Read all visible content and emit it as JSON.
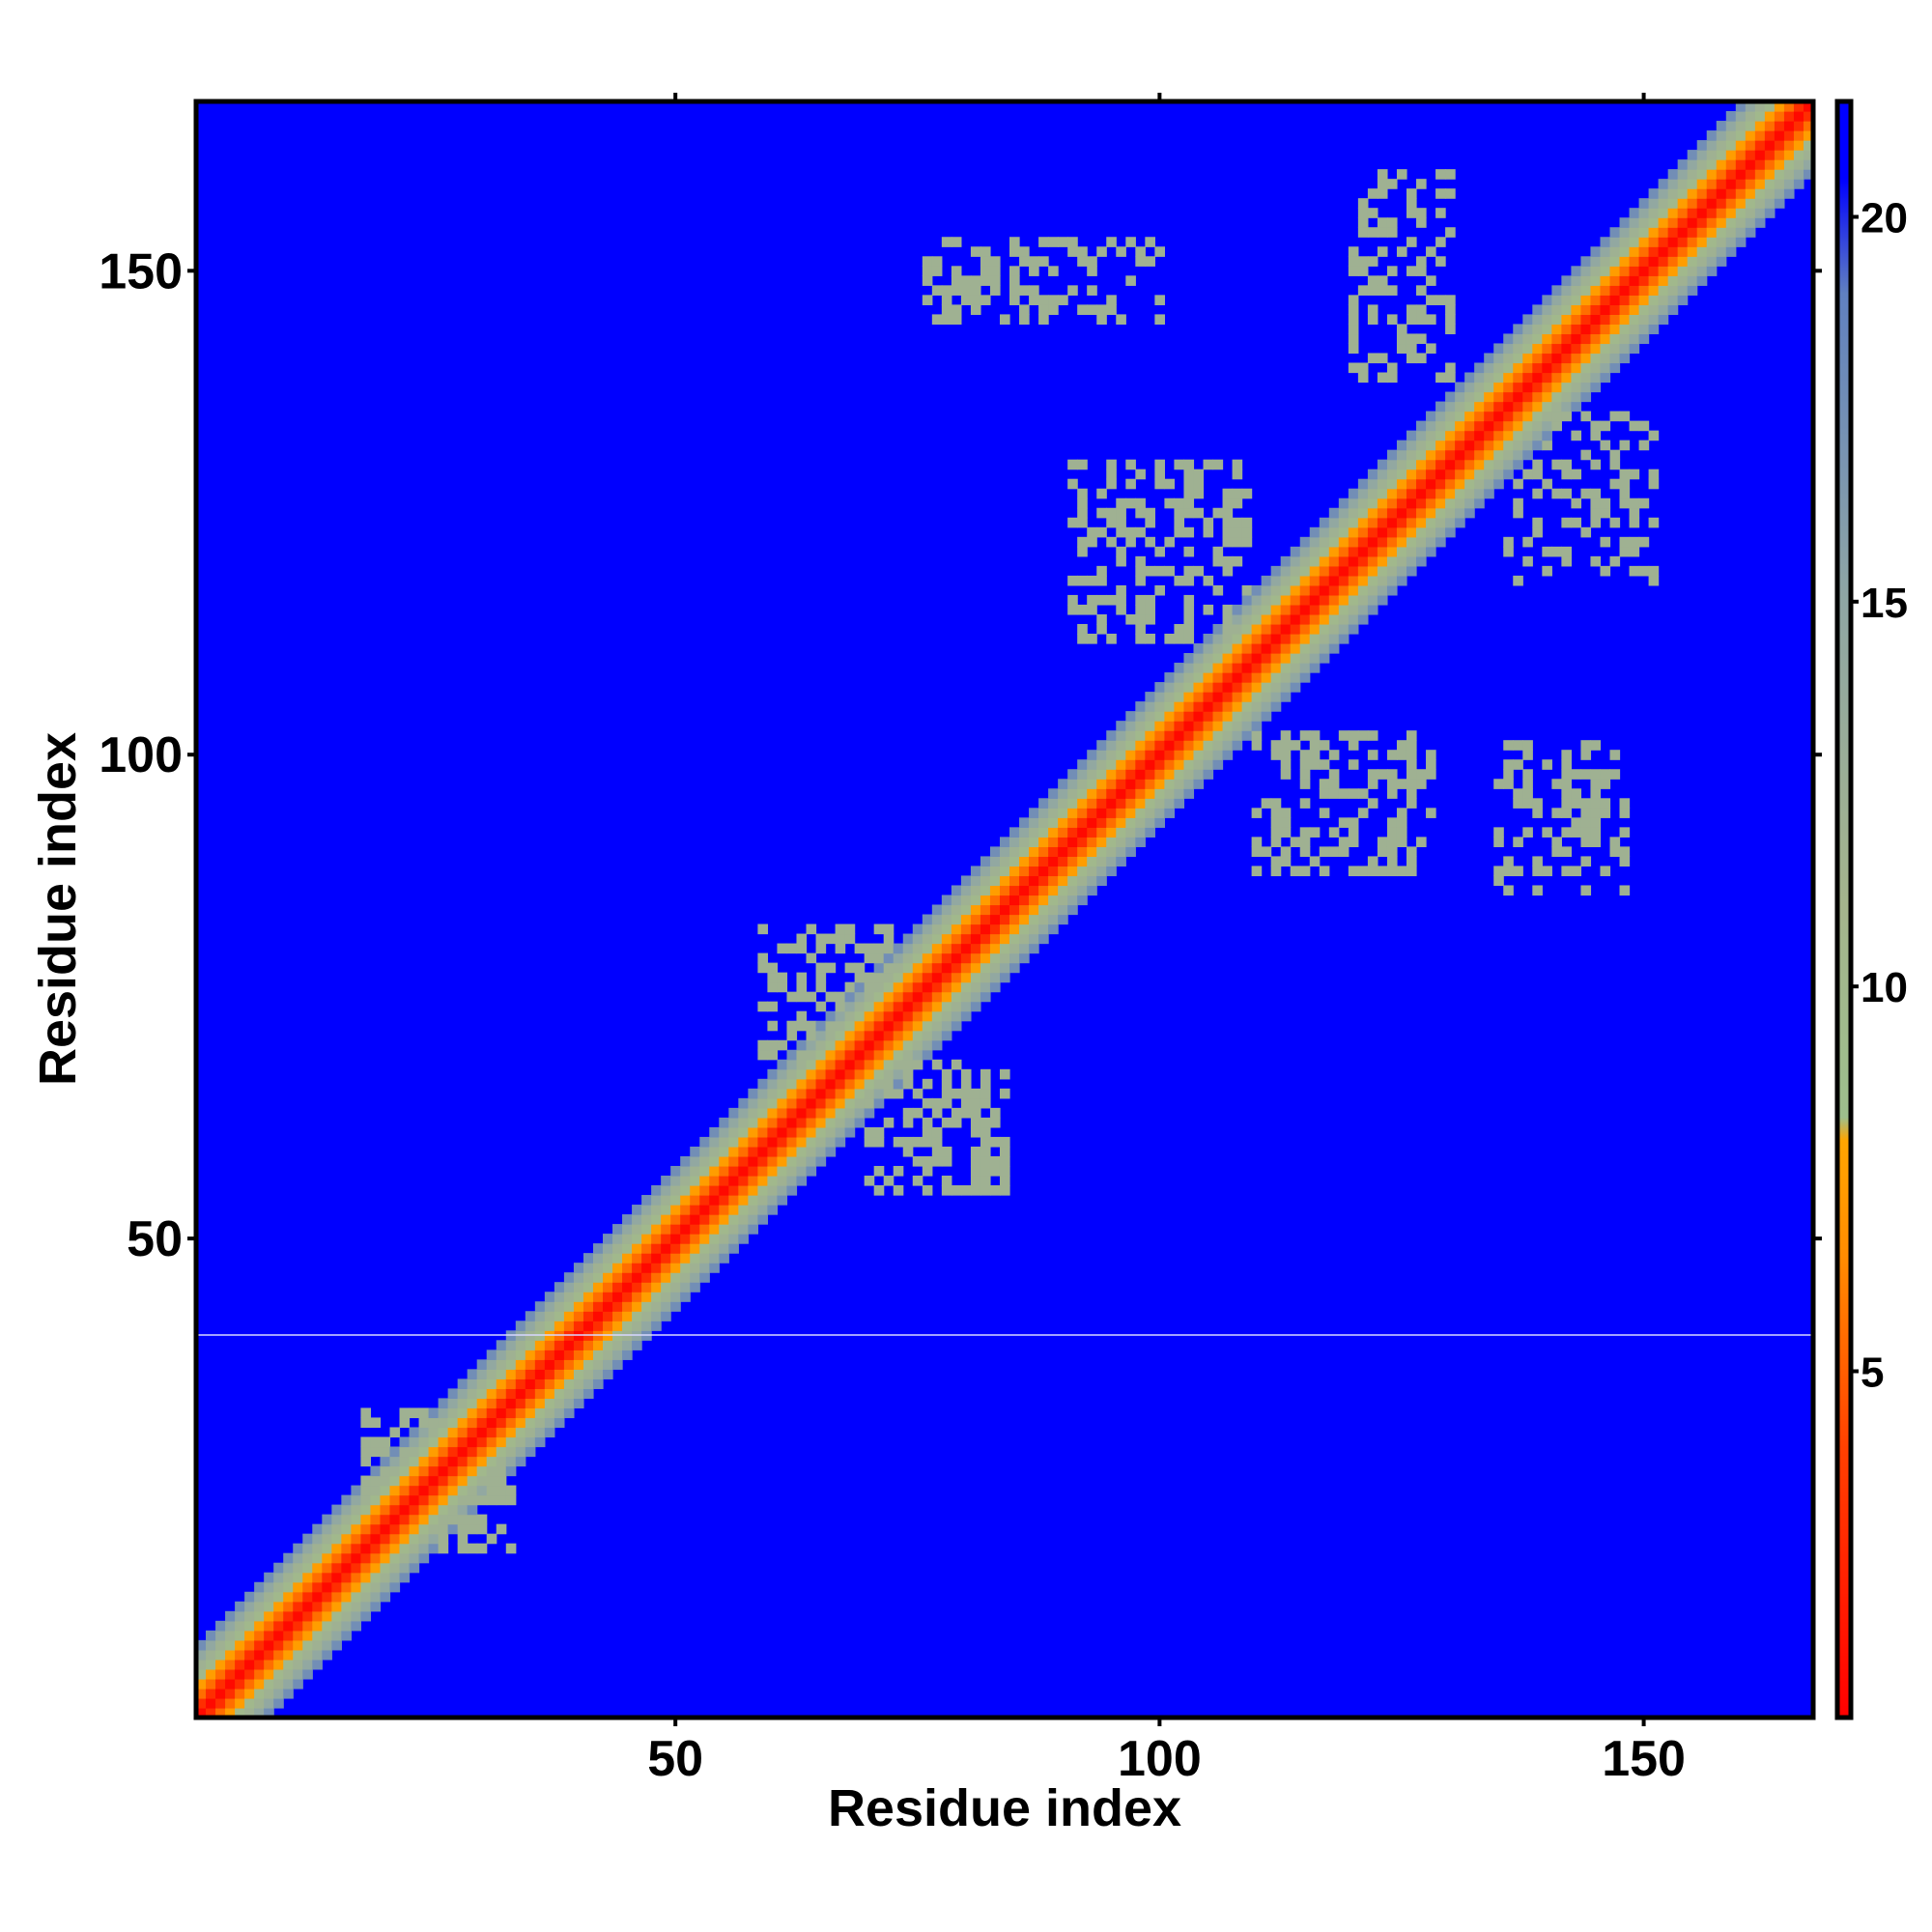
{
  "chart_data": {
    "type": "heatmap",
    "title": "",
    "xlabel": "Residue index",
    "ylabel": "Residue index",
    "n_residues": 167,
    "xlim": [
      1,
      167
    ],
    "ylim": [
      1,
      167
    ],
    "x_ticks": [
      50,
      100,
      150
    ],
    "y_ticks": [
      50,
      100,
      150
    ],
    "colorbar": {
      "ticks": [
        5,
        10,
        15,
        20
      ],
      "range": [
        0.5,
        21.5
      ],
      "stops": [
        {
          "value": 0.5,
          "color": "#ff0000"
        },
        {
          "value": 4.0,
          "color": "#ff4000"
        },
        {
          "value": 6.5,
          "color": "#ff8c00"
        },
        {
          "value": 8.0,
          "color": "#ffa500"
        },
        {
          "value": 8.3,
          "color": "#9dbf8c"
        },
        {
          "value": 11.0,
          "color": "#a4b48c"
        },
        {
          "value": 15.0,
          "color": "#8fa6a4"
        },
        {
          "value": 19.0,
          "color": "#6080c0"
        },
        {
          "value": 20.5,
          "color": "#0000ff"
        },
        {
          "value": 21.5,
          "color": "#0000ff"
        }
      ]
    },
    "background_value": 21,
    "diagonal_band": [
      {
        "offset": 0,
        "value": 1
      },
      {
        "offset": 1,
        "value": 3
      },
      {
        "offset": 2,
        "value": 5.5
      },
      {
        "offset": 3,
        "value": 7.5
      },
      {
        "offset": 4,
        "value": 10
      },
      {
        "offset": 5,
        "value": 12
      },
      {
        "offset": 6,
        "value": 14.5
      },
      {
        "offset": 7,
        "value": 17.5
      }
    ],
    "contact_regions": [
      {
        "residue_i": [
          110,
          128
        ],
        "residue_j": [
          88,
          102
        ],
        "value": 12,
        "density": 0.45
      },
      {
        "residue_i": [
          91,
          109
        ],
        "residue_j": [
          112,
          130
        ],
        "value": 12,
        "density": 0.45
      },
      {
        "residue_i": [
          135,
          148
        ],
        "residue_j": [
          86,
          101
        ],
        "value": 12,
        "density": 0.4
      },
      {
        "residue_i": [
          120,
          130
        ],
        "residue_j": [
          139,
          160
        ],
        "value": 12,
        "density": 0.4
      },
      {
        "residue_i": [
          136,
          151
        ],
        "residue_j": [
          118,
          135
        ],
        "value": 12,
        "density": 0.35
      },
      {
        "residue_i": [
          76,
          100
        ],
        "residue_j": [
          145,
          153
        ],
        "value": 12,
        "density": 0.35
      },
      {
        "residue_i": [
          59,
          72
        ],
        "residue_j": [
          69,
          82
        ],
        "value": 12,
        "density": 0.5
      },
      {
        "residue_i": [
          70,
          84
        ],
        "residue_j": [
          55,
          68
        ],
        "value": 12,
        "density": 0.5
      },
      {
        "residue_i": [
          18,
          33
        ],
        "residue_j": [
          23,
          32
        ],
        "value": 12,
        "density": 0.45
      },
      {
        "residue_i": [
          25,
          33
        ],
        "residue_j": [
          18,
          31
        ],
        "value": 12,
        "density": 0.45
      }
    ],
    "random_seed": 7
  }
}
